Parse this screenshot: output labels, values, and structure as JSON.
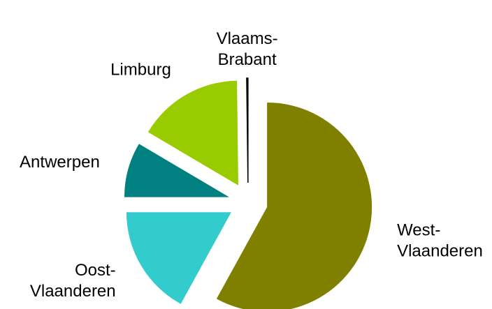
{
  "chart_data": {
    "type": "pie",
    "categories": [
      "West-Vlaanderen",
      "Oost-Vlaanderen",
      "Antwerpen",
      "Limburg",
      "Vlaams-Brabant"
    ],
    "values": [
      58,
      17,
      8.5,
      16.3,
      0.2
    ],
    "colors": [
      "#808000",
      "#33cccc",
      "#008080",
      "#99cc00",
      "#000000"
    ]
  }
}
